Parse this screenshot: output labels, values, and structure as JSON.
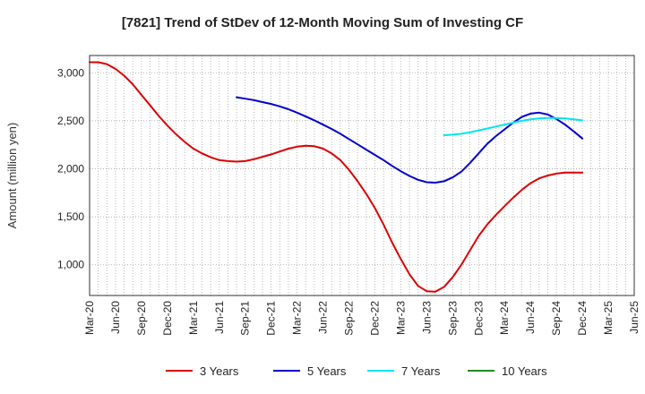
{
  "chart_data": {
    "type": "line",
    "title": "[7821]  Trend of StDev of 12-Month Moving Sum of Investing CF",
    "ylabel": "Amount (million yen)",
    "xlabel": "",
    "ylim": [
      680,
      3180
    ],
    "yticks": [
      1000,
      1500,
      2000,
      2500,
      3000
    ],
    "ytick_labels": [
      "1,000",
      "1,500",
      "2,000",
      "2,500",
      "3,000"
    ],
    "xticks": [
      "Mar-20",
      "Jun-20",
      "Sep-20",
      "Dec-20",
      "Mar-21",
      "Jun-21",
      "Sep-21",
      "Dec-21",
      "Mar-22",
      "Jun-22",
      "Sep-22",
      "Dec-22",
      "Mar-23",
      "Jun-23",
      "Sep-23",
      "Dec-23",
      "Mar-24",
      "Jun-24",
      "Sep-24",
      "Dec-24",
      "Mar-25",
      "Jun-25"
    ],
    "grid": true,
    "legend_position": "bottom",
    "series": [
      {
        "name": "3 Years",
        "color": "#dd0000",
        "points": [
          [
            "Mar-20",
            3110
          ],
          [
            "Apr-20",
            3110
          ],
          [
            "May-20",
            3090
          ],
          [
            "Jun-20",
            3040
          ],
          [
            "Jul-20",
            2970
          ],
          [
            "Aug-20",
            2880
          ],
          [
            "Sep-20",
            2770
          ],
          [
            "Oct-20",
            2660
          ],
          [
            "Nov-20",
            2550
          ],
          [
            "Dec-20",
            2450
          ],
          [
            "Jan-21",
            2360
          ],
          [
            "Feb-21",
            2280
          ],
          [
            "Mar-21",
            2210
          ],
          [
            "Apr-21",
            2160
          ],
          [
            "May-21",
            2120
          ],
          [
            "Jun-21",
            2090
          ],
          [
            "Jul-21",
            2080
          ],
          [
            "Aug-21",
            2075
          ],
          [
            "Sep-21",
            2080
          ],
          [
            "Oct-21",
            2100
          ],
          [
            "Nov-21",
            2125
          ],
          [
            "Dec-21",
            2150
          ],
          [
            "Jan-22",
            2180
          ],
          [
            "Feb-22",
            2210
          ],
          [
            "Mar-22",
            2230
          ],
          [
            "Apr-22",
            2240
          ],
          [
            "May-22",
            2235
          ],
          [
            "Jun-22",
            2210
          ],
          [
            "Jul-22",
            2160
          ],
          [
            "Aug-22",
            2090
          ],
          [
            "Sep-22",
            1990
          ],
          [
            "Oct-22",
            1870
          ],
          [
            "Nov-22",
            1740
          ],
          [
            "Dec-22",
            1590
          ],
          [
            "Jan-23",
            1420
          ],
          [
            "Feb-23",
            1230
          ],
          [
            "Mar-23",
            1060
          ],
          [
            "Apr-23",
            900
          ],
          [
            "May-23",
            780
          ],
          [
            "Jun-23",
            725
          ],
          [
            "Jul-23",
            720
          ],
          [
            "Aug-23",
            770
          ],
          [
            "Sep-23",
            870
          ],
          [
            "Oct-23",
            1000
          ],
          [
            "Nov-23",
            1150
          ],
          [
            "Dec-23",
            1300
          ],
          [
            "Jan-24",
            1420
          ],
          [
            "Feb-24",
            1520
          ],
          [
            "Mar-24",
            1610
          ],
          [
            "Apr-24",
            1700
          ],
          [
            "May-24",
            1780
          ],
          [
            "Jun-24",
            1850
          ],
          [
            "Jul-24",
            1900
          ],
          [
            "Aug-24",
            1930
          ],
          [
            "Sep-24",
            1950
          ],
          [
            "Oct-24",
            1960
          ],
          [
            "Nov-24",
            1960
          ],
          [
            "Dec-24",
            1960
          ]
        ]
      },
      {
        "name": "5 Years",
        "color": "#0000cc",
        "points": [
          [
            "Aug-21",
            2745
          ],
          [
            "Sep-21",
            2730
          ],
          [
            "Oct-21",
            2715
          ],
          [
            "Nov-21",
            2695
          ],
          [
            "Dec-21",
            2675
          ],
          [
            "Jan-22",
            2650
          ],
          [
            "Feb-22",
            2620
          ],
          [
            "Mar-22",
            2585
          ],
          [
            "Apr-22",
            2545
          ],
          [
            "May-22",
            2505
          ],
          [
            "Jun-22",
            2460
          ],
          [
            "Jul-22",
            2415
          ],
          [
            "Aug-22",
            2365
          ],
          [
            "Sep-22",
            2310
          ],
          [
            "Oct-22",
            2255
          ],
          [
            "Nov-22",
            2200
          ],
          [
            "Dec-22",
            2145
          ],
          [
            "Jan-23",
            2090
          ],
          [
            "Feb-23",
            2030
          ],
          [
            "Mar-23",
            1975
          ],
          [
            "Apr-23",
            1925
          ],
          [
            "May-23",
            1885
          ],
          [
            "Jun-23",
            1860
          ],
          [
            "Jul-23",
            1855
          ],
          [
            "Aug-23",
            1870
          ],
          [
            "Sep-23",
            1910
          ],
          [
            "Oct-23",
            1970
          ],
          [
            "Nov-23",
            2060
          ],
          [
            "Dec-23",
            2160
          ],
          [
            "Jan-24",
            2260
          ],
          [
            "Feb-24",
            2340
          ],
          [
            "Mar-24",
            2410
          ],
          [
            "Apr-24",
            2480
          ],
          [
            "May-24",
            2540
          ],
          [
            "Jun-24",
            2575
          ],
          [
            "Jul-24",
            2585
          ],
          [
            "Aug-24",
            2565
          ],
          [
            "Sep-24",
            2520
          ],
          [
            "Oct-24",
            2460
          ],
          [
            "Nov-24",
            2390
          ],
          [
            "Dec-24",
            2315
          ]
        ]
      },
      {
        "name": "7 Years",
        "color": "#00e5ee",
        "points": [
          [
            "Aug-23",
            2350
          ],
          [
            "Sep-23",
            2355
          ],
          [
            "Oct-23",
            2365
          ],
          [
            "Nov-23",
            2380
          ],
          [
            "Dec-23",
            2400
          ],
          [
            "Jan-24",
            2420
          ],
          [
            "Feb-24",
            2440
          ],
          [
            "Mar-24",
            2460
          ],
          [
            "Apr-24",
            2480
          ],
          [
            "May-24",
            2500
          ],
          [
            "Jun-24",
            2515
          ],
          [
            "Jul-24",
            2525
          ],
          [
            "Aug-24",
            2530
          ],
          [
            "Sep-24",
            2530
          ],
          [
            "Oct-24",
            2525
          ],
          [
            "Nov-24",
            2515
          ],
          [
            "Dec-24",
            2505
          ]
        ]
      },
      {
        "name": "10 Years",
        "color": "#228b22",
        "points": []
      }
    ]
  }
}
